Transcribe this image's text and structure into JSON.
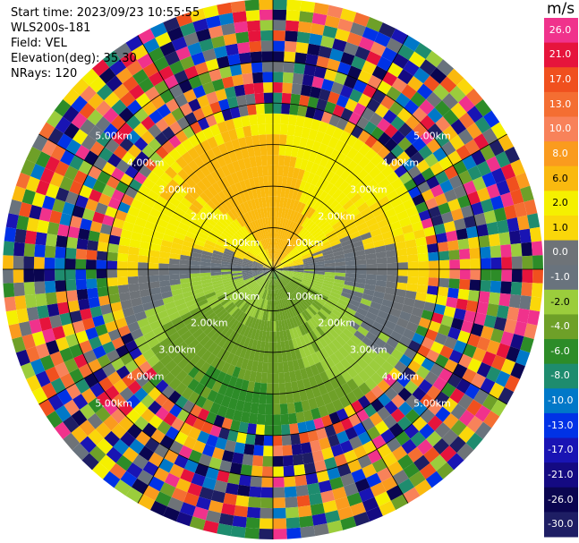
{
  "header": {
    "start_time": "Start time: 2023/09/23 10:55:55",
    "instrument": "WLS200s-181",
    "field": "Field: VEL",
    "elevation": "Elevation(deg): 35.30",
    "nrays": "NRays: 120"
  },
  "colorbar": {
    "unit": "m/s",
    "levels": [
      {
        "label": "26.0",
        "color": "#f0328c"
      },
      {
        "label": "21.0",
        "color": "#e6143c"
      },
      {
        "label": "17.0",
        "color": "#f0501e"
      },
      {
        "label": "13.0",
        "color": "#f46e32"
      },
      {
        "label": "10.0",
        "color": "#f8825a"
      },
      {
        "label": "8.0",
        "color": "#fa9b1e"
      },
      {
        "label": "6.0",
        "color": "#fab90f"
      },
      {
        "label": "2.0",
        "color": "#f5f000"
      },
      {
        "label": "1.0",
        "color": "#fad70a"
      },
      {
        "label": "0.0",
        "color": "#6e7378"
      },
      {
        "label": "-1.0",
        "color": "#69737d"
      },
      {
        "label": "-2.0",
        "color": "#9bcd3c"
      },
      {
        "label": "-4.0",
        "color": "#6ea028"
      },
      {
        "label": "-6.0",
        "color": "#2d8c28"
      },
      {
        "label": "-8.0",
        "color": "#1e8c6e"
      },
      {
        "label": "-10.0",
        "color": "#0078c8"
      },
      {
        "label": "-13.0",
        "color": "#0032e6"
      },
      {
        "label": "-17.0",
        "color": "#1914b4"
      },
      {
        "label": "-21.0",
        "color": "#140a82"
      },
      {
        "label": "-26.0",
        "color": "#0a0550"
      },
      {
        "label": "-30.0",
        "color": "#1e1e64"
      }
    ]
  },
  "chart_data": {
    "type": "heatmap",
    "projection": "polar PPI",
    "field": "VEL",
    "unit": "m/s",
    "n_rays": 120,
    "range_rings_km": [
      1.0,
      2.0,
      3.0,
      4.0,
      5.0
    ],
    "ring_labels": [
      "1.00km",
      "2.00km",
      "3.00km",
      "4.00km",
      "5.00km"
    ],
    "spokes_deg": [
      0,
      30,
      60,
      90,
      120,
      150,
      180,
      210,
      240,
      270,
      300,
      330
    ],
    "max_range_km": 6.5,
    "valid_data_radius_km": 3.8,
    "wind_pattern": {
      "approach_sector": "north",
      "approach_velocity_ms": [
        2.0,
        6.0
      ],
      "recede_sector": "south",
      "recede_velocity_ms": [
        -6.0,
        -2.0
      ],
      "zero_line": "east-west",
      "beyond_valid_range": "noise"
    }
  }
}
